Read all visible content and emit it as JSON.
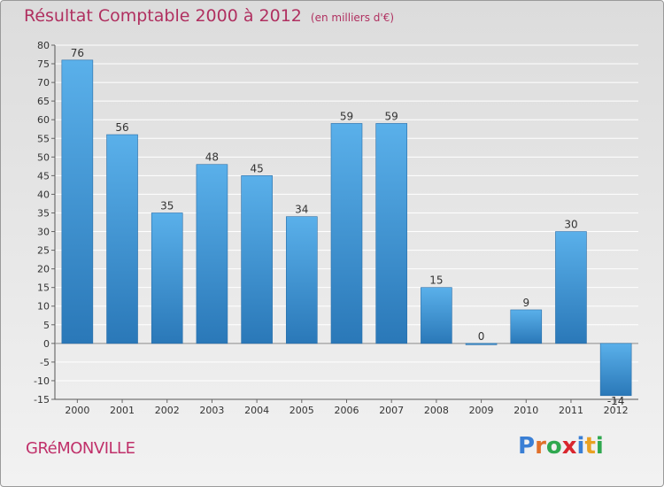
{
  "header": {
    "title": "Résultat Comptable 2000 à 2012",
    "subtitle": "(en milliers d'€)"
  },
  "footer": {
    "town": "GRéMONVILLE",
    "brand_letters": [
      "P",
      "r",
      "o",
      "x",
      "i",
      "t",
      "i"
    ],
    "brand_colors": [
      "#3a7fd5",
      "#e0702a",
      "#2fa84f",
      "#d9262e",
      "#3a7fd5",
      "#e9a123",
      "#2fa84f"
    ]
  },
  "chart_data": {
    "type": "bar",
    "title": "Résultat Comptable 2000 à 2012",
    "subtitle": "(en milliers d'€)",
    "categories": [
      "2000",
      "2001",
      "2002",
      "2003",
      "2004",
      "2005",
      "2006",
      "2007",
      "2008",
      "2009",
      "2010",
      "2011",
      "2012"
    ],
    "values": [
      76,
      56,
      35,
      48,
      45,
      34,
      59,
      59,
      15,
      0,
      9,
      30,
      -14
    ],
    "value_labels": [
      "76",
      "56",
      "35",
      "48",
      "45",
      "34",
      "59",
      "59",
      "15",
      "0",
      "9",
      "30",
      "-14"
    ],
    "ylim": [
      -15,
      80
    ],
    "yticks": [
      80,
      75,
      70,
      65,
      60,
      55,
      50,
      45,
      40,
      35,
      30,
      25,
      20,
      15,
      10,
      5,
      0,
      -5,
      -10,
      -15
    ],
    "ytick_labels": [
      "80",
      "75",
      "70",
      "65",
      "60",
      "55",
      "50",
      "45",
      "40",
      "35",
      "30",
      "25",
      "20",
      "15",
      "10",
      "5",
      "0",
      "-5",
      "-10",
      "-15"
    ],
    "grid": true,
    "bar_color_top": "#5ab0ea",
    "bar_color_bottom": "#2a78b8",
    "xlabel": "",
    "ylabel": ""
  }
}
